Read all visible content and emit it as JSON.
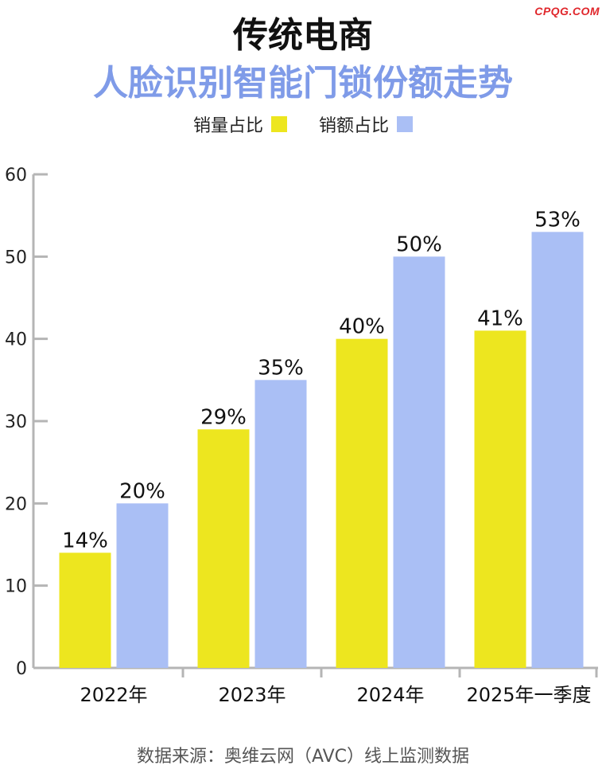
{
  "brand": "CPQG.COM",
  "title_line1": "传统电商",
  "title_line2": "人脸识别智能门锁份额走势",
  "source": "数据来源：奥维云网（AVC）线上监测数据",
  "colors": {
    "sales_volume": "#ede61f",
    "sales_amount": "#aabff5",
    "axis": "#b5b5b5",
    "title_accent": "#7f9be8"
  },
  "chart_data": {
    "type": "bar",
    "categories": [
      "2022年",
      "2023年",
      "2024年",
      "2025年一季度"
    ],
    "series": [
      {
        "name": "销量占比",
        "values": [
          14,
          29,
          40,
          41
        ],
        "labels": [
          "14%",
          "29%",
          "40%",
          "41%"
        ]
      },
      {
        "name": "销额占比",
        "values": [
          20,
          35,
          50,
          53
        ],
        "labels": [
          "20%",
          "35%",
          "50%",
          "53%"
        ]
      }
    ],
    "ylim": [
      0,
      60
    ],
    "yticks": [
      0,
      10,
      20,
      30,
      40,
      50,
      60
    ],
    "grid": false,
    "legend": "top-center"
  }
}
